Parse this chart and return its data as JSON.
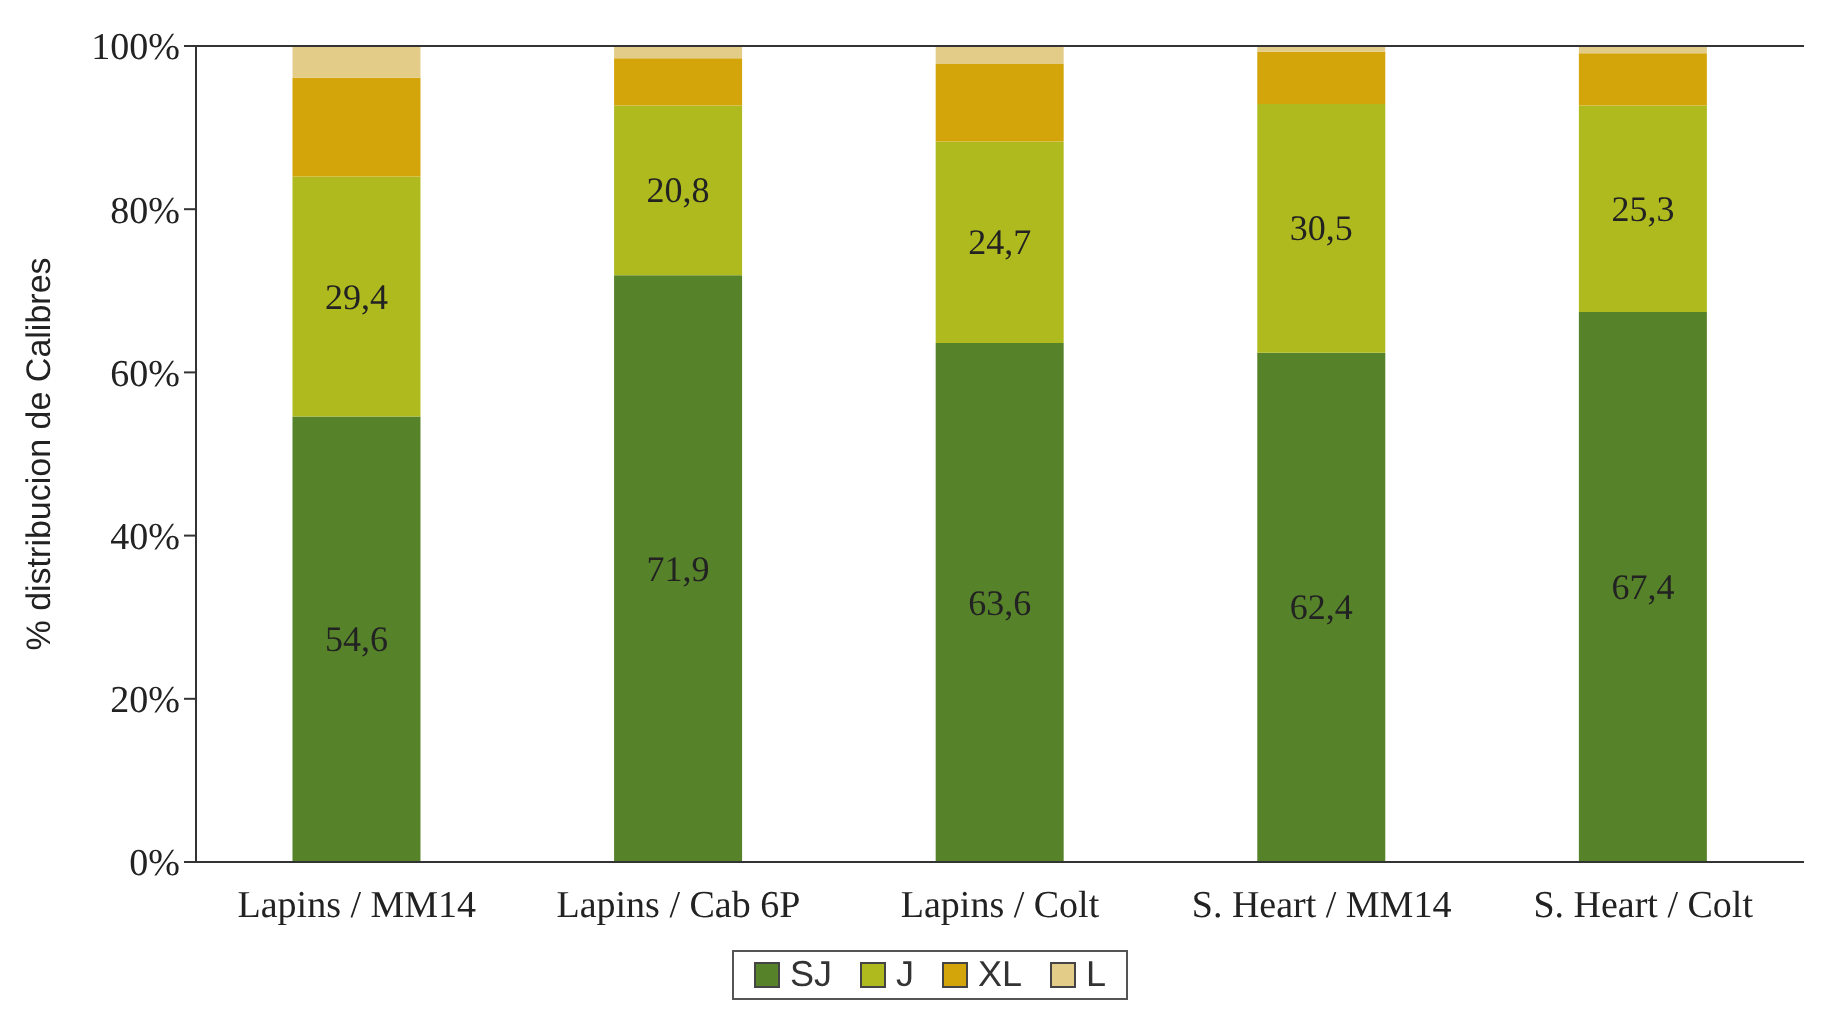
{
  "chart_data": {
    "type": "bar",
    "stacked": true,
    "ylabel": "% distribucion de Calibres",
    "categories": [
      "Lapins / MM14",
      "Lapins / Cab 6P",
      "Lapins / Colt",
      "S. Heart / MM14",
      "S. Heart / Colt"
    ],
    "series": [
      {
        "name": "SJ",
        "color": "#56832a",
        "values": [
          54.6,
          71.9,
          63.6,
          62.4,
          67.4
        ],
        "value_labels": [
          "54,6",
          "71,9",
          "63,6",
          "62,4",
          "67,4"
        ]
      },
      {
        "name": "J",
        "color": "#afba1e",
        "values": [
          29.4,
          20.8,
          24.7,
          30.5,
          25.3
        ],
        "value_labels": [
          "29,4",
          "20,8",
          "24,7",
          "30,5",
          "25,3"
        ]
      },
      {
        "name": "XL",
        "color": "#d4a50a",
        "values": [
          12.1,
          5.8,
          9.5,
          6.4,
          6.4
        ]
      },
      {
        "name": "L",
        "color": "#e3cc88",
        "values": [
          3.9,
          1.5,
          2.2,
          0.7,
          0.9
        ]
      }
    ],
    "ylim": [
      0,
      100
    ],
    "yticks": [
      {
        "value": 0,
        "label": "0%"
      },
      {
        "value": 20,
        "label": "20%"
      },
      {
        "value": 40,
        "label": "40%"
      },
      {
        "value": 60,
        "label": "60%"
      },
      {
        "value": 80,
        "label": "80%"
      },
      {
        "value": 100,
        "label": "100%"
      }
    ],
    "grid": false,
    "legend": "bottom"
  }
}
